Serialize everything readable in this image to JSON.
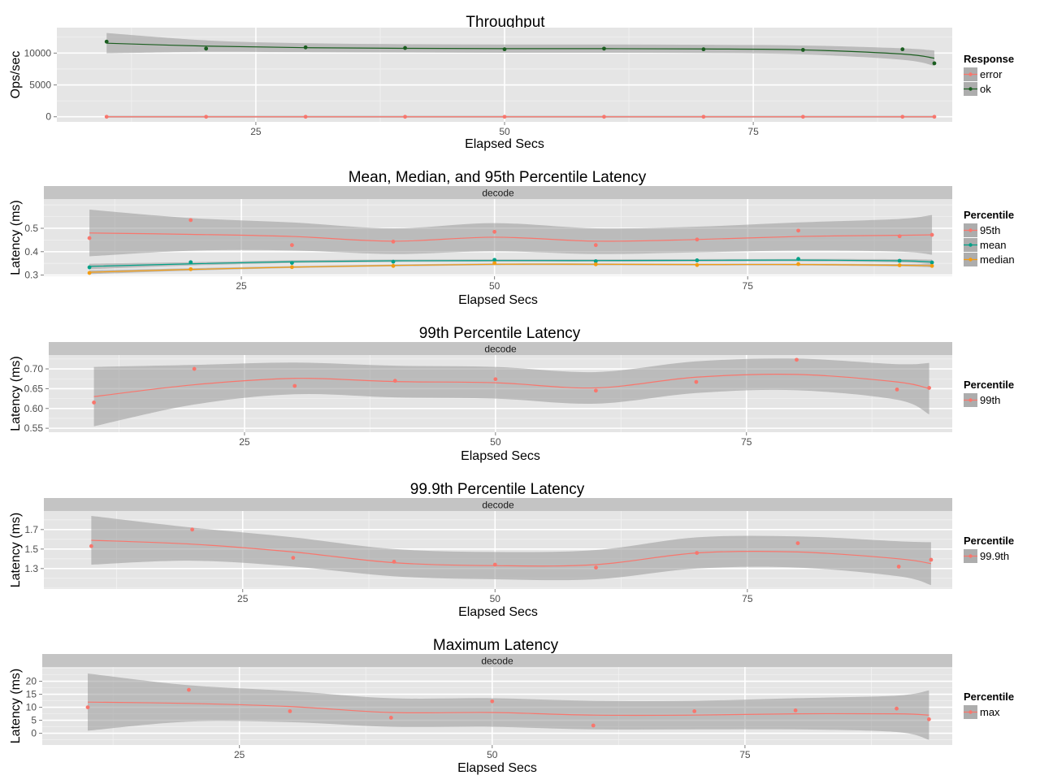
{
  "chart_data": [
    {
      "type": "scatter",
      "title": "Throughput",
      "xlabel": "Elapsed Secs",
      "ylabel": "Ops/sec",
      "strip": "",
      "xlim": [
        5,
        95
      ],
      "ylim": [
        -800,
        14000
      ],
      "xticks": [
        25,
        50,
        75
      ],
      "yticks": [
        0,
        5000,
        10000
      ],
      "grid": true,
      "legend": {
        "title": "Response",
        "position": "right"
      },
      "series": [
        {
          "name": "error",
          "color": "#F8766D",
          "x": [
            10,
            20,
            30,
            40,
            50,
            60,
            70,
            80,
            90,
            93.2
          ],
          "y": [
            0,
            0,
            0,
            0,
            0,
            0,
            0,
            0,
            0,
            0
          ],
          "smooth": [
            0,
            0,
            0,
            0,
            0,
            0,
            0,
            0,
            0,
            0
          ],
          "band": 150
        },
        {
          "name": "ok",
          "color": "#1B5E20",
          "x": [
            10,
            20,
            30,
            40,
            50,
            60,
            70,
            80,
            90,
            93.2
          ],
          "y": [
            11800,
            10700,
            10900,
            10800,
            10600,
            10700,
            10600,
            10500,
            10600,
            8400
          ],
          "smooth": [
            11550,
            11100,
            10850,
            10750,
            10700,
            10700,
            10650,
            10500,
            9850,
            9200
          ],
          "band": [
            1600,
            900,
            700,
            650,
            650,
            650,
            650,
            700,
            900,
            1200
          ]
        }
      ]
    },
    {
      "type": "scatter",
      "title": "Mean, Median, and 95th Percentile Latency",
      "xlabel": "Elapsed Secs",
      "ylabel": "Latency (ms)",
      "strip": "decode",
      "xlim": [
        5.5,
        95.2
      ],
      "ylim": [
        0.295,
        0.625
      ],
      "xticks": [
        25,
        50,
        75
      ],
      "yticks": [
        0.3,
        0.4,
        0.5
      ],
      "grid": true,
      "legend": {
        "title": "Percentile",
        "position": "right"
      },
      "series": [
        {
          "name": "95th",
          "color": "#F8766D",
          "x": [
            10,
            20,
            30,
            40,
            50,
            60,
            70,
            80,
            90,
            93.2
          ],
          "y": [
            0.458,
            0.535,
            0.428,
            0.443,
            0.485,
            0.428,
            0.452,
            0.49,
            0.466,
            0.472
          ],
          "smooth": [
            0.48,
            0.474,
            0.465,
            0.445,
            0.462,
            0.445,
            0.452,
            0.465,
            0.47,
            0.472
          ],
          "band": [
            0.1,
            0.07,
            0.06,
            0.055,
            0.06,
            0.055,
            0.055,
            0.06,
            0.07,
            0.085
          ]
        },
        {
          "name": "mean",
          "color": "#00A087",
          "x": [
            10,
            20,
            30,
            40,
            50,
            60,
            70,
            80,
            90,
            93.2
          ],
          "y": [
            0.333,
            0.355,
            0.352,
            0.357,
            0.365,
            0.359,
            0.363,
            0.369,
            0.361,
            0.354
          ],
          "smooth": [
            0.337,
            0.348,
            0.357,
            0.361,
            0.362,
            0.362,
            0.363,
            0.364,
            0.361,
            0.356
          ],
          "band": [
            0.012,
            0.007,
            0.006,
            0.005,
            0.005,
            0.005,
            0.005,
            0.005,
            0.007,
            0.01
          ]
        },
        {
          "name": "median",
          "color": "#F39C12",
          "x": [
            10,
            20,
            30,
            40,
            50,
            60,
            70,
            80,
            90,
            93.2
          ],
          "y": [
            0.309,
            0.325,
            0.334,
            0.339,
            0.351,
            0.346,
            0.343,
            0.347,
            0.342,
            0.339
          ],
          "smooth": [
            0.312,
            0.324,
            0.334,
            0.341,
            0.346,
            0.346,
            0.345,
            0.345,
            0.342,
            0.34
          ],
          "band": [
            0.008,
            0.005,
            0.004,
            0.004,
            0.004,
            0.004,
            0.004,
            0.004,
            0.005,
            0.007
          ]
        }
      ]
    },
    {
      "type": "scatter",
      "title": "99th Percentile Latency",
      "xlabel": "Elapsed Secs",
      "ylabel": "Latency (ms)",
      "strip": "decode",
      "xlim": [
        5.5,
        95.5
      ],
      "ylim": [
        0.54,
        0.735
      ],
      "xticks": [
        25,
        50,
        75
      ],
      "yticks": [
        0.55,
        0.6,
        0.65,
        0.7
      ],
      "grid": true,
      "legend": {
        "title": "Percentile",
        "position": "right"
      },
      "series": [
        {
          "name": "99th",
          "color": "#F8766D",
          "x": [
            10,
            20,
            30,
            40,
            50,
            60,
            70,
            80,
            90,
            93.2
          ],
          "y": [
            0.615,
            0.7,
            0.657,
            0.67,
            0.674,
            0.645,
            0.667,
            0.723,
            0.648,
            0.652
          ],
          "smooth": [
            0.63,
            0.66,
            0.676,
            0.668,
            0.665,
            0.652,
            0.679,
            0.686,
            0.667,
            0.65
          ],
          "band": [
            0.075,
            0.05,
            0.04,
            0.04,
            0.04,
            0.04,
            0.04,
            0.04,
            0.045,
            0.065
          ]
        }
      ]
    },
    {
      "type": "scatter",
      "title": "99.9th Percentile Latency",
      "xlabel": "Elapsed Secs",
      "ylabel": "Latency (ms)",
      "strip": "decode",
      "xlim": [
        5.3,
        95.3
      ],
      "ylim": [
        1.09,
        1.89
      ],
      "xticks": [
        25,
        50,
        75
      ],
      "yticks": [
        1.3,
        1.5,
        1.7
      ],
      "grid": true,
      "legend": {
        "title": "Percentile",
        "position": "right"
      },
      "series": [
        {
          "name": "99.9th",
          "color": "#F8766D",
          "x": [
            10,
            20,
            30,
            40,
            50,
            60,
            70,
            80,
            90,
            93.2
          ],
          "y": [
            1.53,
            1.7,
            1.41,
            1.37,
            1.34,
            1.31,
            1.46,
            1.56,
            1.32,
            1.39
          ],
          "smooth": [
            1.59,
            1.55,
            1.47,
            1.36,
            1.33,
            1.34,
            1.46,
            1.47,
            1.4,
            1.35
          ],
          "band": [
            0.25,
            0.17,
            0.15,
            0.14,
            0.14,
            0.15,
            0.16,
            0.16,
            0.18,
            0.22
          ]
        }
      ]
    },
    {
      "type": "scatter",
      "title": "Maximum Latency",
      "xlabel": "Elapsed Secs",
      "ylabel": "Latency (ms)",
      "strip": "decode",
      "xlim": [
        5.5,
        95.5
      ],
      "ylim": [
        -4.5,
        25.5
      ],
      "xticks": [
        25,
        50,
        75
      ],
      "yticks": [
        0,
        5,
        10,
        15,
        20
      ],
      "grid": true,
      "legend": {
        "title": "Percentile",
        "position": "right"
      },
      "series": [
        {
          "name": "max",
          "color": "#F8766D",
          "x": [
            10,
            20,
            30,
            40,
            50,
            60,
            70,
            80,
            90,
            93.2
          ],
          "y": [
            10,
            16.7,
            8.5,
            6,
            12.3,
            3,
            8.5,
            8.8,
            9.5,
            5.4
          ],
          "smooth": [
            12,
            11.5,
            10.3,
            8,
            8,
            7,
            7,
            7.5,
            7.5,
            7
          ],
          "band": [
            11,
            7,
            6,
            5.5,
            5.5,
            5.5,
            5.5,
            6,
            7,
            9.5
          ]
        }
      ]
    }
  ]
}
